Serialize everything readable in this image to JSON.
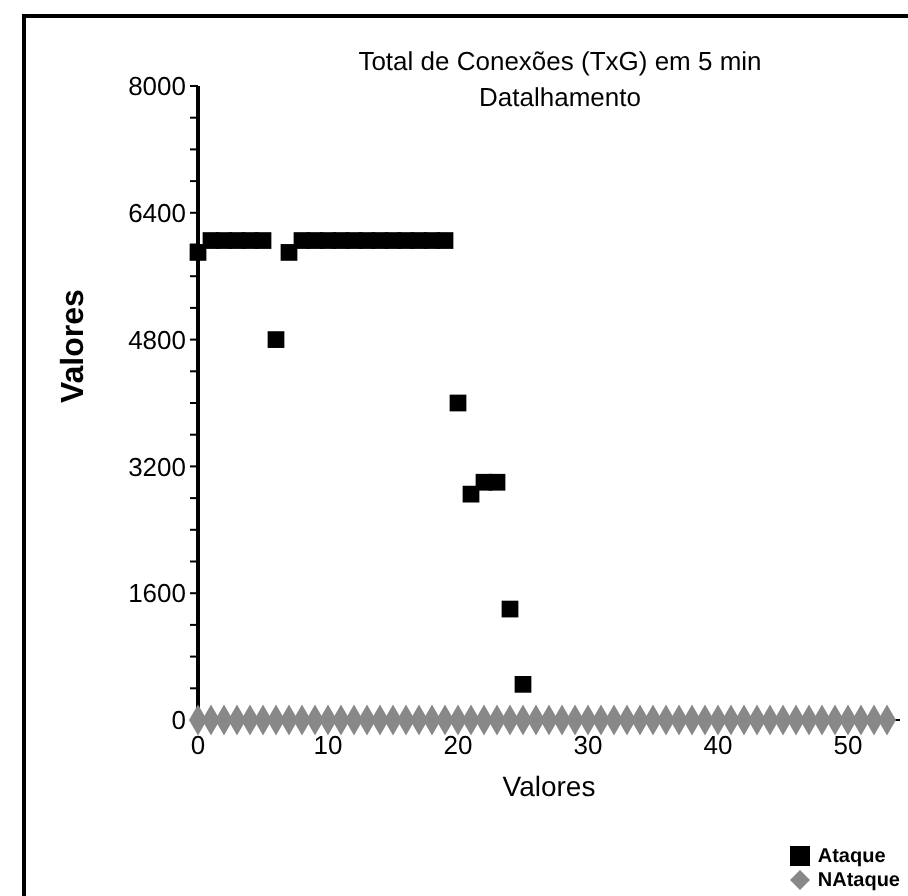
{
  "chart_data": {
    "type": "scatter",
    "title": "Total de Conexões (TxG) em 5 min\nDatalhamento",
    "xlabel": "Valores",
    "ylabel": "Valores",
    "xlim": [
      0,
      54
    ],
    "xticks": [
      0,
      10,
      20,
      30,
      40,
      50
    ],
    "ylim": [
      0,
      8000
    ],
    "yticks": [
      0,
      {
        "value": 400,
        "label": null
      },
      {
        "value": 800,
        "label": null
      },
      {
        "value": 1200,
        "label": null
      },
      1600,
      {
        "value": 2000,
        "label": null
      },
      {
        "value": 2400,
        "label": null
      },
      {
        "value": 2800,
        "label": null
      },
      3200,
      {
        "value": 3600,
        "label": null
      },
      {
        "value": 4000,
        "label": null
      },
      {
        "value": 4400,
        "label": null
      },
      4800,
      {
        "value": 5200,
        "label": null
      },
      {
        "value": 5600,
        "label": null
      },
      {
        "value": 6000,
        "label": null
      },
      6400,
      {
        "value": 6800,
        "label": null
      },
      {
        "value": 7200,
        "label": null
      },
      {
        "value": 7600,
        "label": null
      },
      8000
    ],
    "grid": false,
    "legend": "bottom right",
    "series": [
      {
        "name": "Ataque",
        "color": "#000000",
        "marker": "square",
        "x": [
          0,
          1,
          2,
          3,
          4,
          5,
          6,
          7,
          8,
          9,
          10,
          11,
          12,
          13,
          14,
          15,
          16,
          17,
          18,
          19,
          20,
          21,
          22,
          23,
          24,
          25
        ],
        "values": [
          5900,
          6050,
          6050,
          6050,
          6050,
          6050,
          4800,
          5900,
          6050,
          6050,
          6050,
          6050,
          6050,
          6050,
          6050,
          6050,
          6050,
          6050,
          6050,
          6050,
          4000,
          2850,
          3000,
          3000,
          1400,
          450
        ]
      },
      {
        "name": "NAtaque",
        "color": "#888888",
        "marker": "diamond",
        "x": [
          0,
          1,
          2,
          3,
          4,
          5,
          6,
          7,
          8,
          9,
          10,
          11,
          12,
          13,
          14,
          15,
          16,
          17,
          18,
          19,
          20,
          21,
          22,
          23,
          24,
          25,
          26,
          27,
          28,
          29,
          30,
          31,
          32,
          33,
          34,
          35,
          36,
          37,
          38,
          39,
          40,
          41,
          42,
          43,
          44,
          45,
          46,
          47,
          48,
          49,
          50,
          51,
          52,
          53
        ],
        "values": [
          0,
          0,
          0,
          0,
          0,
          0,
          0,
          0,
          0,
          0,
          0,
          0,
          0,
          0,
          0,
          0,
          0,
          0,
          0,
          0,
          0,
          0,
          0,
          0,
          0,
          0,
          0,
          0,
          0,
          0,
          0,
          0,
          0,
          0,
          0,
          0,
          0,
          0,
          0,
          0,
          0,
          0,
          0,
          0,
          0,
          0,
          0,
          0,
          0,
          0,
          0,
          0,
          0,
          0
        ]
      }
    ]
  }
}
